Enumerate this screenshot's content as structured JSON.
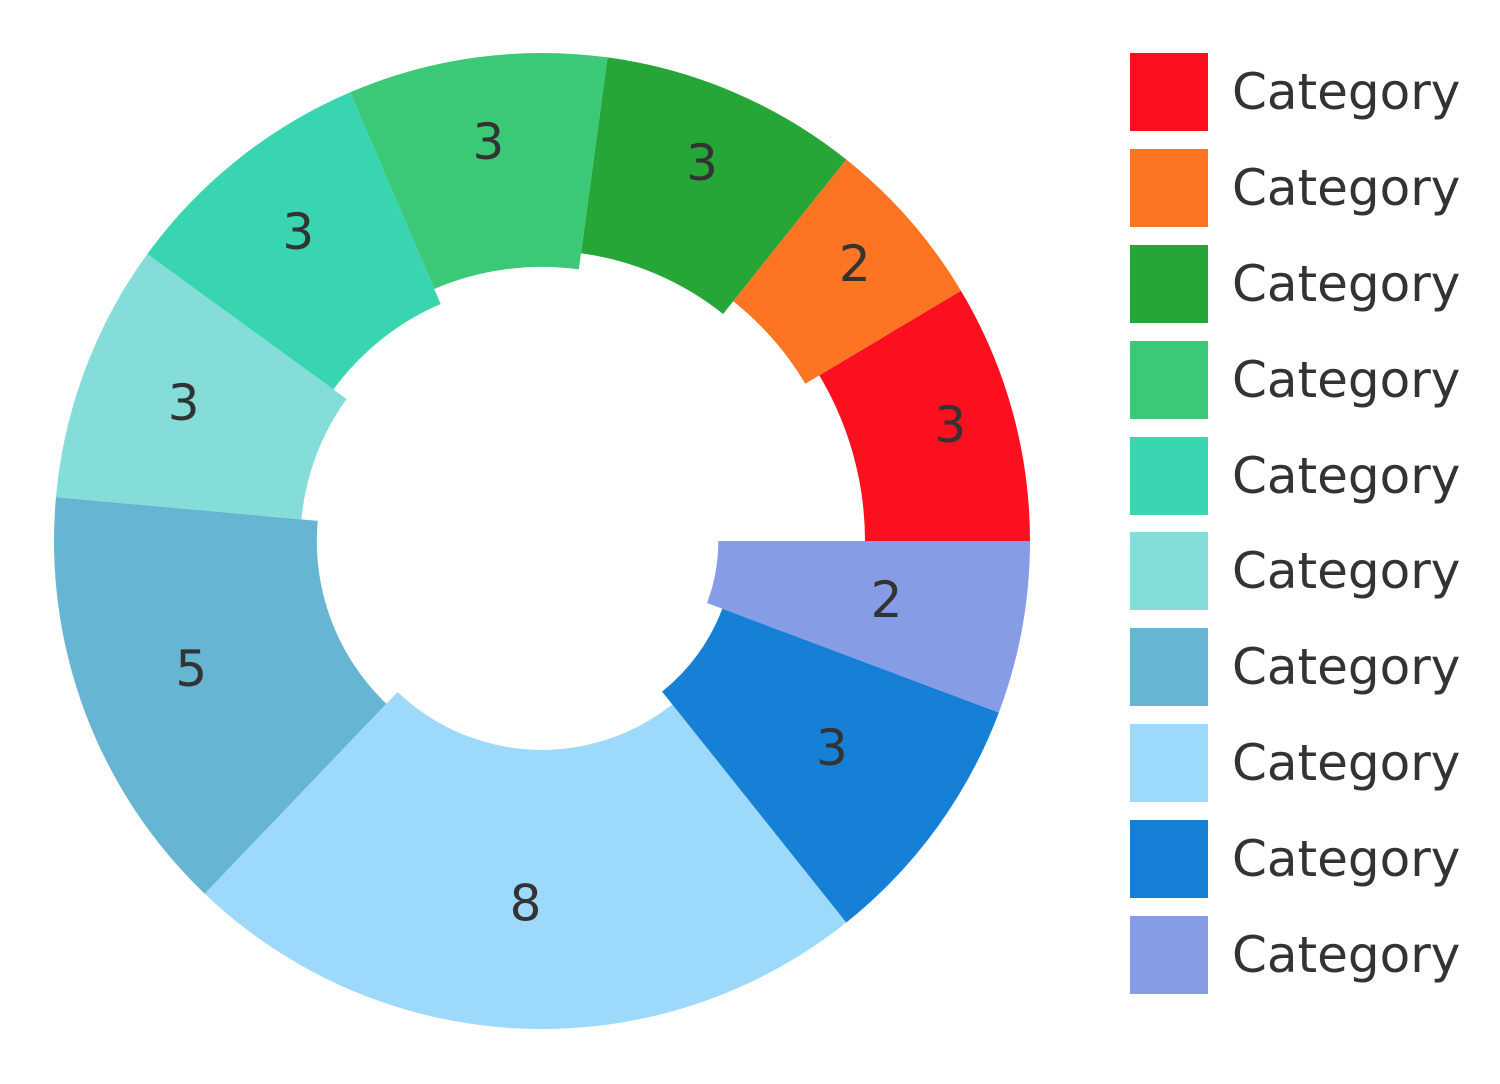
{
  "chart_data": {
    "type": "pie",
    "variant": "donut",
    "title": "",
    "slices": [
      {
        "label": "Category",
        "value": 3,
        "color": "#FC0F1F"
      },
      {
        "label": "Category",
        "value": 2,
        "color": "#FD7522"
      },
      {
        "label": "Category",
        "value": 3,
        "color": "#26A636"
      },
      {
        "label": "Category",
        "value": 3,
        "color": "#3BC978"
      },
      {
        "label": "Category",
        "value": 3,
        "color": "#38D5B0"
      },
      {
        "label": "Category",
        "value": 3,
        "color": "#84DDD9"
      },
      {
        "label": "Category",
        "value": 5,
        "color": "#65B5D3"
      },
      {
        "label": "Category",
        "value": 8,
        "color": "#9DD9FA"
      },
      {
        "label": "Category",
        "value": 3,
        "color": "#1580D5"
      },
      {
        "label": "Category",
        "value": 2,
        "color": "#869DE6"
      }
    ],
    "legend_position": "right",
    "label_color": "#333333"
  }
}
